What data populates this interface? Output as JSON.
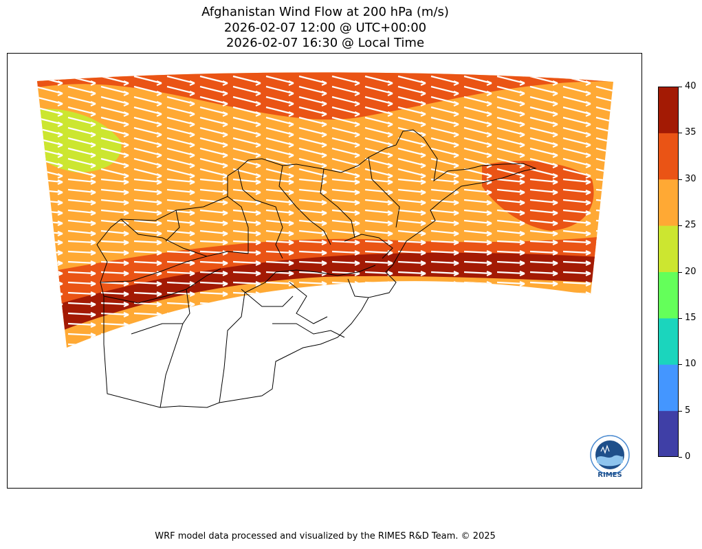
{
  "title": {
    "line1": "Afghanistan Wind Flow at 200 hPa (m/s)",
    "line2": "2026-02-07 12:00 @ UTC+00:00",
    "line3": "2026-02-07 16:30 @ Local Time"
  },
  "colorbar": {
    "ticks": [
      "0",
      "5",
      "10",
      "15",
      "20",
      "25",
      "30",
      "35",
      "40"
    ],
    "colors": [
      "#3f3fa6",
      "#4496ff",
      "#1bd5bd",
      "#64ff5a",
      "#cce630",
      "#ffa934",
      "#ea5415",
      "#a31a04"
    ]
  },
  "map": {
    "colors": {
      "orange": "#ffa934",
      "red_orange": "#ea5415",
      "dark_red": "#a31a04",
      "yellow_green": "#cce630",
      "arrow": "#ffffff",
      "border": "#000000"
    }
  },
  "logo": {
    "text": "RIMES",
    "icon": "rimes-logo-icon"
  },
  "footer": "WRF model data processed and visualized by the RIMES R&D Team. © 2025"
}
